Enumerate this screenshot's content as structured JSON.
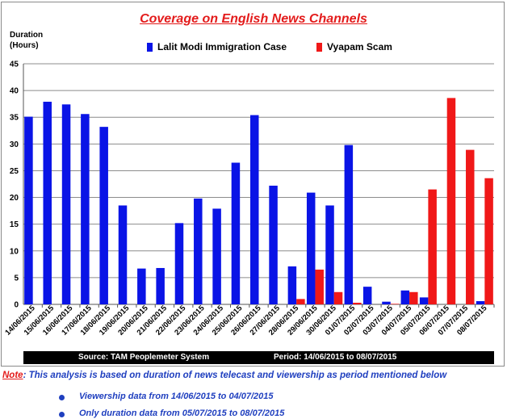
{
  "chart_data": {
    "type": "bar",
    "title": "Coverage on English News Channels",
    "ylabel": "Duration (Hours)",
    "ylim": [
      0,
      45
    ],
    "yticks": [
      "0",
      "5",
      "10",
      "15",
      "20",
      "25",
      "30",
      "35",
      "40",
      "45"
    ],
    "grid": true,
    "legend_position": "top",
    "categories": [
      "14/06/2015",
      "15/06/2015",
      "16/06/2015",
      "17/06/2015",
      "18/06/2015",
      "19/06/2015",
      "20/06/2015",
      "21/06/2015",
      "22/06/2015",
      "23/06/2015",
      "24/06/2015",
      "25/06/2015",
      "26/06/2015",
      "27/06/2015",
      "28/06/2015",
      "29/06/2015",
      "30/06/2015",
      "01/07/2015",
      "02/07/2015",
      "03/07/2015",
      "04/07/2015",
      "05/07/2015",
      "06/07/2015",
      "07/07/2015",
      "08/07/2015"
    ],
    "series": [
      {
        "name": "Lalit Modi Immigration Case",
        "color": "#0a14e6",
        "values": [
          35.1,
          37.9,
          37.4,
          35.6,
          33.2,
          18.5,
          6.7,
          6.8,
          15.2,
          19.8,
          17.9,
          26.5,
          35.4,
          22.2,
          7.1,
          20.9,
          18.5,
          29.8,
          3.3,
          0.5,
          2.6,
          1.3,
          0,
          0,
          0.6
        ]
      },
      {
        "name": "Vyapam Scam",
        "color": "#f01818",
        "values": [
          0,
          0,
          0,
          0,
          0,
          0,
          0,
          0,
          0,
          0,
          0,
          0,
          0,
          0,
          1.0,
          6.5,
          2.3,
          0.3,
          0,
          0.1,
          2.3,
          21.5,
          38.6,
          28.9,
          23.6
        ]
      }
    ]
  },
  "ylabel_lines": [
    "Duration",
    "(Hours)"
  ],
  "source": {
    "left": "Source: TAM Peoplemeter System",
    "right": "Period: 14/06/2015 to 08/07/2015"
  },
  "note": {
    "label": "Note",
    "text": ": This analysis is based on duration of news telecast and viewership as period mentioned below",
    "bullets": [
      "Viewership data from 14/06/2015 to 04/07/2015",
      "Only duration data from 05/07/2015 to 08/07/2015"
    ]
  }
}
